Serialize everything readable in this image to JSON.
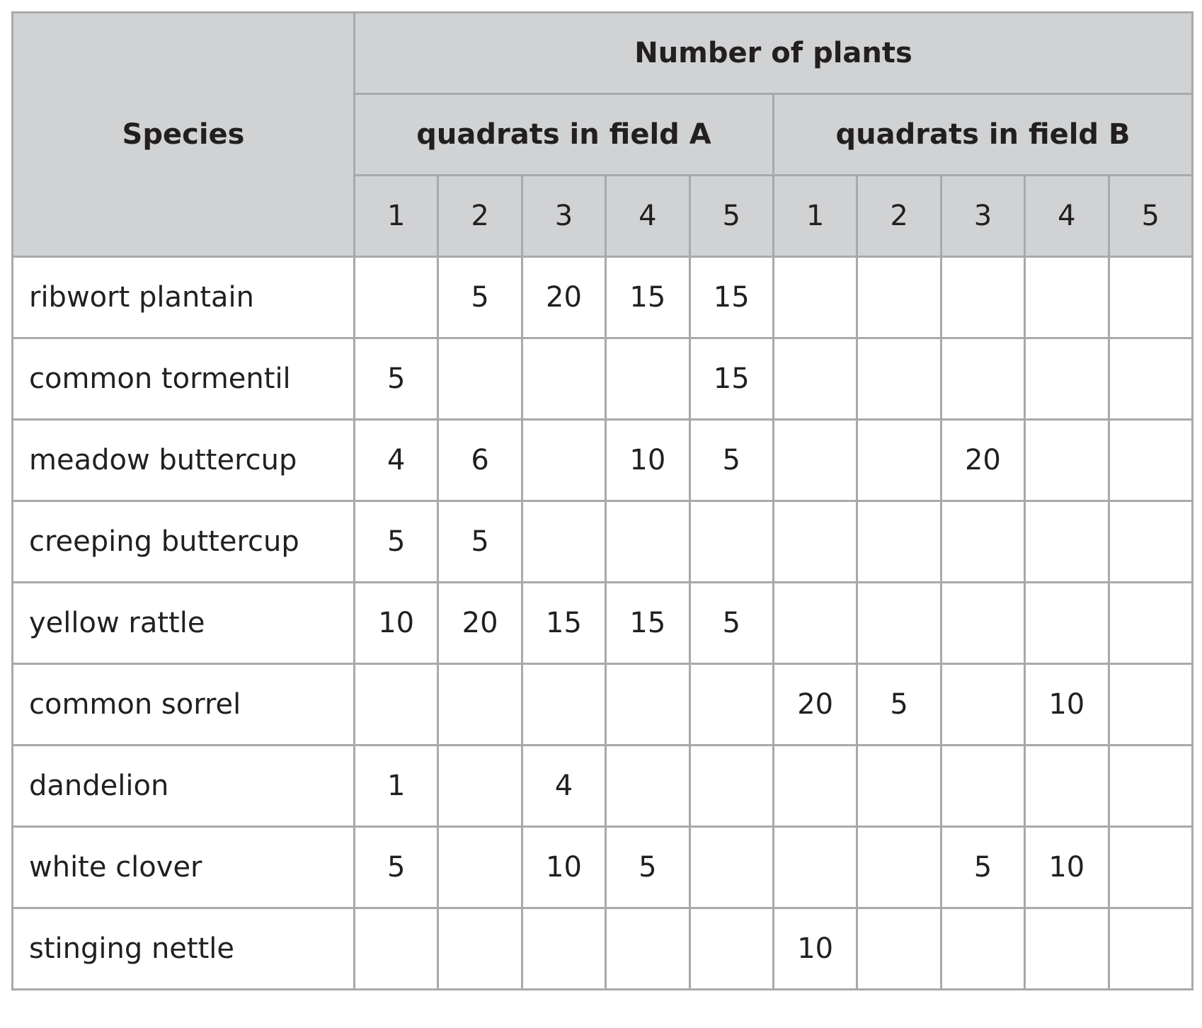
{
  "table": {
    "header": {
      "species": "Species",
      "group": "Number of plants",
      "fields": [
        {
          "name": "quadrats in field A",
          "quadrats": [
            1,
            2,
            3,
            4,
            5
          ]
        },
        {
          "name": "quadrats in field B",
          "quadrats": [
            1,
            2,
            3,
            4,
            5
          ]
        }
      ]
    },
    "rows": [
      {
        "species": "ribwort plantain",
        "values": [
          null,
          5,
          20,
          15,
          15,
          null,
          null,
          null,
          null,
          null
        ]
      },
      {
        "species": "common tormentil",
        "values": [
          5,
          null,
          null,
          null,
          15,
          null,
          null,
          null,
          null,
          null
        ]
      },
      {
        "species": "meadow buttercup",
        "values": [
          4,
          6,
          null,
          10,
          5,
          null,
          null,
          20,
          null,
          null
        ]
      },
      {
        "species": "creeping buttercup",
        "values": [
          5,
          5,
          null,
          null,
          null,
          null,
          null,
          null,
          null,
          null
        ]
      },
      {
        "species": "yellow rattle",
        "values": [
          10,
          20,
          15,
          15,
          5,
          null,
          null,
          null,
          null,
          null
        ]
      },
      {
        "species": "common sorrel",
        "values": [
          null,
          null,
          null,
          null,
          null,
          20,
          5,
          null,
          10,
          null
        ]
      },
      {
        "species": "dandelion",
        "values": [
          1,
          null,
          4,
          null,
          null,
          null,
          null,
          null,
          null,
          null
        ]
      },
      {
        "species": "white clover",
        "values": [
          5,
          null,
          10,
          5,
          null,
          null,
          null,
          5,
          10,
          null
        ]
      },
      {
        "species": "stinging nettle",
        "values": [
          null,
          null,
          null,
          null,
          null,
          10,
          null,
          null,
          null,
          null
        ]
      }
    ]
  }
}
